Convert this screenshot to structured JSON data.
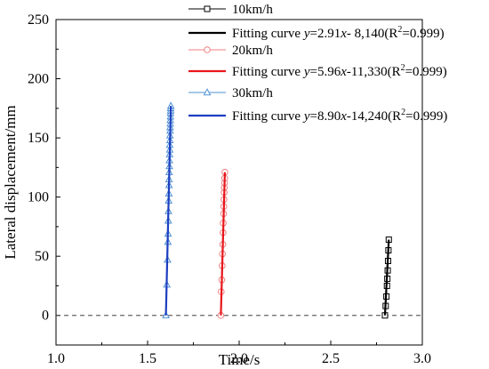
{
  "chart_data": {
    "type": "line",
    "title": "",
    "xlabel": "Time/s",
    "ylabel": "Lateral displacement/mm",
    "xlim": [
      1.0,
      3.0
    ],
    "ylim": [
      -25,
      250
    ],
    "x_ticks": [
      "1.0",
      "1.5",
      "2.0",
      "2.5",
      "3.0"
    ],
    "y_ticks": [
      "0",
      "50",
      "100",
      "150",
      "200",
      "250"
    ],
    "reference_line": {
      "y": 0,
      "style": "dashed"
    },
    "grid": false,
    "legend_position": "top-right",
    "series": [
      {
        "name": "10km/h",
        "kind": "data",
        "marker": "square",
        "color": "#000000",
        "x": [
          2.796,
          2.8,
          2.804,
          2.807,
          2.809,
          2.811,
          2.813,
          2.815,
          2.817
        ],
        "y": [
          0,
          8,
          16,
          25,
          31,
          38,
          46,
          55,
          64
        ]
      },
      {
        "name": "Fitting curve y=2.91x- 8,140(R2=0.999)",
        "kind": "fit",
        "color": "#000000",
        "label_parts": [
          "Fitting curve ",
          "y",
          "=2.91",
          "x",
          "- 8,140(R",
          "2",
          "=0.999)"
        ],
        "x": [
          2.796,
          2.817
        ],
        "y": [
          0,
          64
        ]
      },
      {
        "name": "20km/h",
        "kind": "data",
        "marker": "circle",
        "color": "#f08080",
        "x": [
          1.9,
          1.902,
          1.905,
          1.907,
          1.909,
          1.911,
          1.912,
          1.913,
          1.915,
          1.916,
          1.917,
          1.918,
          1.919,
          1.92,
          1.921,
          1.922
        ],
        "y": [
          0,
          20,
          30,
          42,
          52,
          60,
          70,
          78,
          86,
          92,
          98,
          104,
          108,
          112,
          116,
          121
        ]
      },
      {
        "name": "Fitting curve y=5.96x-11,330(R2=0.999)",
        "kind": "fit",
        "color": "#e8161b",
        "label_parts": [
          "Fitting curve ",
          "y",
          "=5.96",
          "x",
          "-11,330(R",
          "2",
          "=0.999)"
        ],
        "x": [
          1.9,
          1.922
        ],
        "y": [
          0,
          121
        ]
      },
      {
        "name": "30km/h",
        "kind": "data",
        "marker": "triangle",
        "color": "#4f91d6",
        "x": [
          1.6,
          1.605,
          1.609,
          1.611,
          1.612,
          1.613,
          1.614,
          1.615,
          1.616,
          1.617,
          1.617,
          1.618,
          1.619,
          1.619,
          1.62,
          1.621,
          1.621,
          1.622,
          1.622,
          1.623,
          1.623,
          1.624,
          1.624,
          1.625,
          1.625,
          1.626,
          1.626,
          1.627
        ],
        "y": [
          0,
          26,
          47,
          62,
          69,
          80,
          88,
          97,
          103,
          110,
          115,
          121,
          126,
          131,
          136,
          140,
          144,
          148,
          152,
          156,
          159,
          162,
          165,
          168,
          171,
          173,
          175,
          177
        ]
      },
      {
        "name": "Fitting curve y=8.90x-14,240(R2=0.999)",
        "kind": "fit",
        "color": "#1c3fbf",
        "label_parts": [
          "Fitting curve ",
          "y",
          "=8.90",
          "x",
          "-14,240(R",
          "2",
          "=0.999)"
        ],
        "x": [
          1.6,
          1.627
        ],
        "y": [
          0,
          177
        ]
      }
    ]
  }
}
